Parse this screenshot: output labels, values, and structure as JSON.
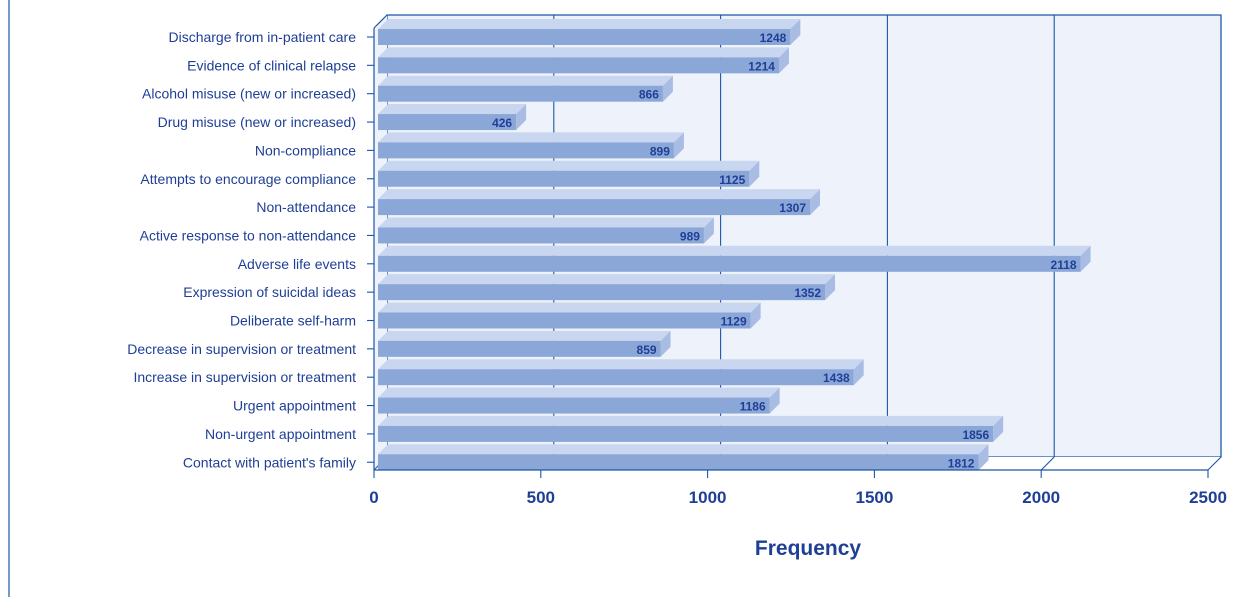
{
  "chart_data": {
    "type": "bar",
    "orientation": "horizontal",
    "title": "",
    "xlabel": "Frequency",
    "ylabel": "",
    "xlim": [
      0,
      2500
    ],
    "xticks": [
      "0",
      "500",
      "1000",
      "1500",
      "2000",
      "2500"
    ],
    "grid": true,
    "legend": "none",
    "categories": [
      "Discharge from in-patient care",
      "Evidence of clinical relapse",
      "Alcohol misuse (new or increased)",
      "Drug misuse (new or increased)",
      "Non-compliance",
      "Attempts to encourage compliance",
      "Non-attendance",
      "Active response to non-attendance",
      "Adverse life events",
      "Expression of suicidal ideas",
      "Deliberate self-harm",
      "Decrease in supervision or treatment",
      "Increase in supervision or treatment",
      "Urgent appointment",
      "Non-urgent appointment",
      "Contact with patient's family"
    ],
    "values": [
      1248,
      1214,
      866,
      426,
      899,
      1125,
      1307,
      989,
      2118,
      1352,
      1129,
      859,
      1438,
      1186,
      1856,
      1812
    ],
    "data_labels": [
      "1248",
      "1214",
      "866",
      "426",
      "899",
      "1125",
      "1307",
      "989",
      "2118",
      "1352",
      "1129",
      "859",
      "1438",
      "1186",
      "1856",
      "1812"
    ]
  },
  "colors": {
    "text": "#1f3f96",
    "axis": "#1b56a8",
    "bar_front": "#8ba7d8",
    "bar_top": "#c9d6ef",
    "bar_side": "#a9bde4",
    "wall": "#eef2fa"
  }
}
